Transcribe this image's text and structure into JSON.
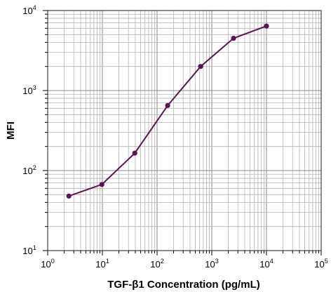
{
  "chart_data": {
    "type": "line",
    "title": "",
    "xlabel": "TGF-β1 Concentration (pg/mL)",
    "ylabel": "MFI",
    "x_scale": "log",
    "y_scale": "log",
    "xlim": [
      1,
      100000
    ],
    "ylim": [
      10,
      10000
    ],
    "grid": true,
    "legend": "none",
    "line_color": "#5a1456",
    "marker_color": "#5a1456",
    "x_ticks": [
      {
        "value": 1,
        "base": "10",
        "exp": "0"
      },
      {
        "value": 10,
        "base": "10",
        "exp": "1"
      },
      {
        "value": 100,
        "base": "10",
        "exp": "2"
      },
      {
        "value": 1000,
        "base": "10",
        "exp": "3"
      },
      {
        "value": 10000,
        "base": "10",
        "exp": "4"
      },
      {
        "value": 100000,
        "base": "10",
        "exp": "5"
      }
    ],
    "y_ticks": [
      {
        "value": 10,
        "base": "10",
        "exp": "1"
      },
      {
        "value": 100,
        "base": "10",
        "exp": "2"
      },
      {
        "value": 1000,
        "base": "10",
        "exp": "3"
      },
      {
        "value": 10000,
        "base": "10",
        "exp": "4"
      }
    ],
    "series": [
      {
        "x": [
          2.44,
          9.77,
          39.1,
          156,
          625,
          2500,
          10000
        ],
        "y": [
          48,
          67,
          165,
          650,
          2000,
          4500,
          6400
        ]
      }
    ]
  }
}
